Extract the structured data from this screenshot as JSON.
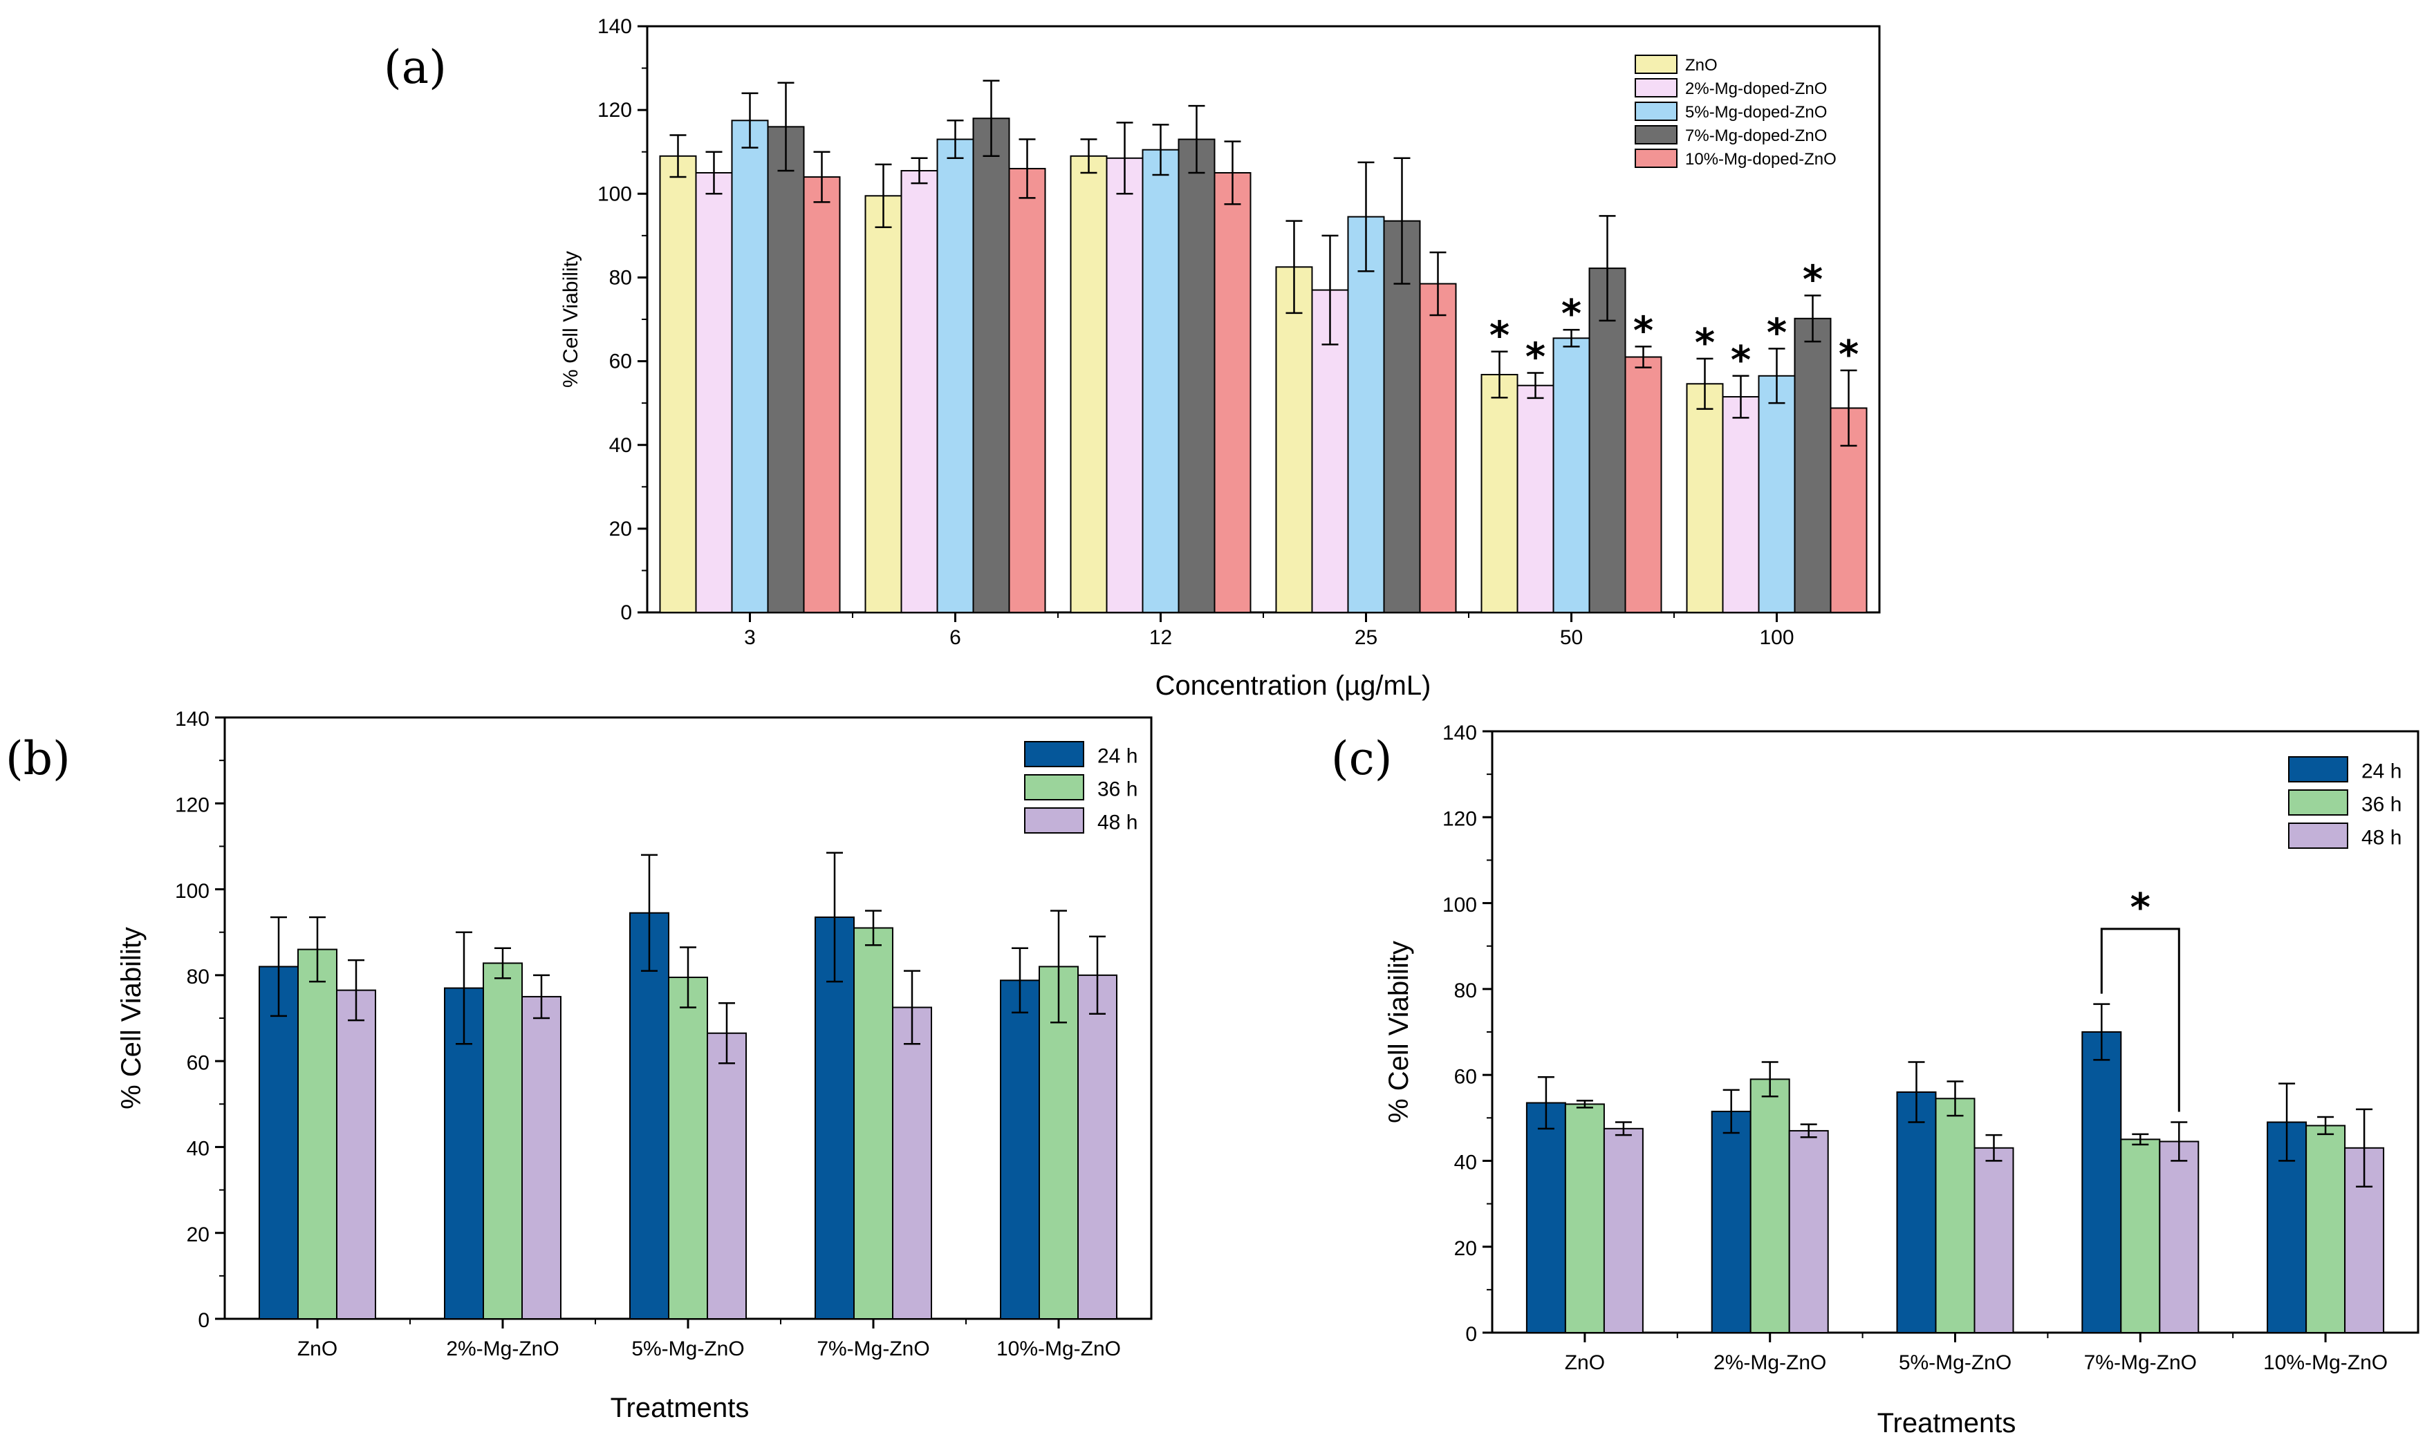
{
  "chart_data": [
    {
      "panel": "(a)",
      "type": "bar",
      "xlabel": "Concentration (µg/mL)",
      "ylabel": "% Cell Viability",
      "ylim": [
        0,
        140
      ],
      "yticks": [
        "0",
        "20",
        "40",
        "60",
        "80",
        "100",
        "120",
        "140"
      ],
      "categories": [
        "3",
        "6",
        "12",
        "25",
        "50",
        "100"
      ],
      "legend_position": "top-right",
      "series": [
        {
          "name": "ZnO",
          "color": "#f5f0b0",
          "values": [
            109,
            99.5,
            109,
            82.5,
            56.8,
            54.6
          ],
          "errors": [
            5,
            7.5,
            4,
            11,
            5.5,
            6
          ],
          "significant": [
            false,
            false,
            false,
            false,
            true,
            true
          ]
        },
        {
          "name": "2%-Mg-doped-ZnO",
          "color": "#f5dcf7",
          "values": [
            105,
            105.5,
            108.5,
            77,
            54.2,
            51.5
          ],
          "errors": [
            5,
            3,
            8.5,
            13,
            3,
            5
          ],
          "significant": [
            false,
            false,
            false,
            false,
            true,
            true
          ]
        },
        {
          "name": "5%-Mg-doped-ZnO",
          "color": "#a6d8f5",
          "values": [
            117.5,
            113,
            110.5,
            94.5,
            65.5,
            56.5
          ],
          "errors": [
            6.5,
            4.5,
            6,
            13,
            2,
            6.5
          ],
          "significant": [
            false,
            false,
            false,
            false,
            true,
            true
          ]
        },
        {
          "name": "7%-Mg-doped-ZnO",
          "color": "#6e6e6e",
          "values": [
            116,
            118,
            113,
            93.5,
            82.2,
            70.2
          ],
          "errors": [
            10.5,
            9,
            8,
            15,
            12.5,
            5.5
          ],
          "significant": [
            false,
            false,
            false,
            false,
            false,
            true
          ]
        },
        {
          "name": "10%-Mg-doped-ZnO",
          "color": "#f29494",
          "values": [
            104,
            106,
            105,
            78.5,
            61,
            48.8
          ],
          "errors": [
            6,
            7,
            7.5,
            7.5,
            2.5,
            9
          ],
          "significant": [
            false,
            false,
            false,
            false,
            true,
            true
          ]
        }
      ],
      "star_symbol": "*"
    },
    {
      "panel": "(b)",
      "type": "bar",
      "xlabel": "Treatments",
      "ylabel": "% Cell Viability",
      "ylim": [
        0,
        140
      ],
      "yticks": [
        "0",
        "20",
        "40",
        "60",
        "80",
        "100",
        "120",
        "140"
      ],
      "categories": [
        "ZnO",
        "2%-Mg-ZnO",
        "5%-Mg-ZnO",
        "7%-Mg-ZnO",
        "10%-Mg-ZnO"
      ],
      "legend_position": "top-right",
      "series": [
        {
          "name": "24 h",
          "color": "#05579a",
          "values": [
            82,
            77,
            94.5,
            93.5,
            78.8
          ],
          "errors": [
            11.5,
            13,
            13.5,
            15,
            7.5
          ]
        },
        {
          "name": "36 h",
          "color": "#9bd49b",
          "values": [
            86,
            82.8,
            79.5,
            91,
            82
          ],
          "errors": [
            7.5,
            3.5,
            7,
            4,
            13
          ]
        },
        {
          "name": "48 h",
          "color": "#c3b1d8",
          "values": [
            76.5,
            75,
            66.5,
            72.5,
            80
          ],
          "errors": [
            7,
            5,
            7,
            8.5,
            9
          ]
        }
      ]
    },
    {
      "panel": "(c)",
      "type": "bar",
      "xlabel": "Treatments",
      "ylabel": "% Cell Viability",
      "ylim": [
        0,
        140
      ],
      "yticks": [
        "0",
        "20",
        "40",
        "60",
        "80",
        "100",
        "120",
        "140"
      ],
      "categories": [
        "ZnO",
        "2%-Mg-ZnO",
        "5%-Mg-ZnO",
        "7%-Mg-ZnO",
        "10%-Mg-ZnO"
      ],
      "legend_position": "top-right",
      "series": [
        {
          "name": "24 h",
          "color": "#05579a",
          "values": [
            53.5,
            51.5,
            56,
            70,
            49
          ],
          "errors": [
            6,
            5,
            7,
            6.5,
            9
          ]
        },
        {
          "name": "36 h",
          "color": "#9bd49b",
          "values": [
            53.2,
            59,
            54.5,
            45,
            48.2
          ],
          "errors": [
            0.8,
            4,
            4,
            1.2,
            2
          ]
        },
        {
          "name": "48 h",
          "color": "#c3b1d8",
          "values": [
            47.5,
            47,
            43,
            44.5,
            43
          ],
          "errors": [
            1.5,
            1.5,
            3,
            4.5,
            9
          ]
        }
      ],
      "significance_bracket": {
        "category": "7%-Mg-ZnO",
        "from_series": "24 h",
        "to_series": "48 h",
        "level": 94,
        "label": "*"
      }
    }
  ]
}
